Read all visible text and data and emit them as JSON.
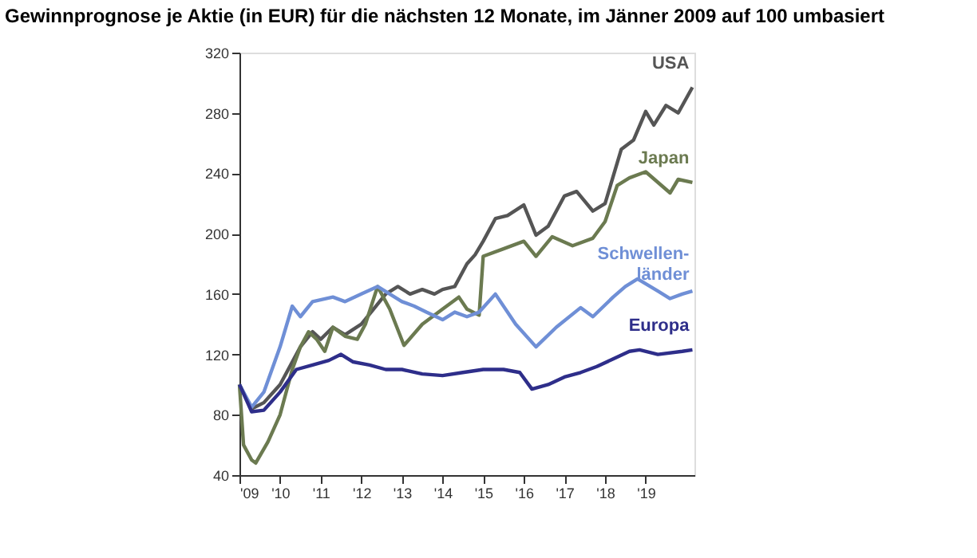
{
  "chart_data": {
    "type": "line",
    "title": "Gewinnprognose je Aktie (in EUR) für die nächsten 12 Monate, im Jänner 2009 auf 100 umbasiert",
    "xlim": [
      2009,
      2020.2
    ],
    "xticks": [
      {
        "value": 2009,
        "label": "'09"
      },
      {
        "value": 2010,
        "label": "'10"
      },
      {
        "value": 2011,
        "label": "'11"
      },
      {
        "value": 2012,
        "label": "'12"
      },
      {
        "value": 2013,
        "label": "'13"
      },
      {
        "value": 2014,
        "label": "'14"
      },
      {
        "value": 2015,
        "label": "'15"
      },
      {
        "value": 2016,
        "label": "'16"
      },
      {
        "value": 2017,
        "label": "'17"
      },
      {
        "value": 2018,
        "label": "'18"
      },
      {
        "value": 2019,
        "label": "'19"
      }
    ],
    "ylim": [
      40,
      320
    ],
    "yticks": [
      40,
      80,
      120,
      160,
      200,
      240,
      280,
      320
    ],
    "grid": false,
    "line_style": "solid",
    "marker": "none",
    "series": [
      {
        "name": "USA",
        "color": "#555555",
        "x": [
          2009.0,
          2009.3,
          2009.6,
          2010.0,
          2010.5,
          2010.8,
          2011.0,
          2011.3,
          2011.6,
          2012.0,
          2012.3,
          2012.6,
          2012.9,
          2013.2,
          2013.5,
          2013.8,
          2014.0,
          2014.3,
          2014.6,
          2014.8,
          2015.0,
          2015.3,
          2015.6,
          2016.0,
          2016.3,
          2016.6,
          2017.0,
          2017.3,
          2017.7,
          2018.0,
          2018.4,
          2018.7,
          2019.0,
          2019.2,
          2019.5,
          2019.8,
          2020.15
        ],
        "values": [
          100,
          84,
          88,
          100,
          125,
          135,
          130,
          138,
          133,
          140,
          150,
          160,
          165,
          160,
          163,
          160,
          163,
          165,
          180,
          186,
          195,
          210,
          212,
          219,
          199,
          205,
          225,
          228,
          215,
          220,
          256,
          262,
          281,
          272,
          285,
          280,
          297
        ]
      },
      {
        "name": "Japan",
        "color": "#6b7a50",
        "x": [
          2009.0,
          2009.1,
          2009.3,
          2009.4,
          2009.7,
          2010.0,
          2010.3,
          2010.5,
          2010.7,
          2010.9,
          2011.1,
          2011.3,
          2011.6,
          2011.9,
          2012.1,
          2012.4,
          2012.7,
          2013.05,
          2013.5,
          2014.0,
          2014.4,
          2014.6,
          2014.9,
          2015.0,
          2015.5,
          2016.0,
          2016.3,
          2016.7,
          2017.2,
          2017.7,
          2018.0,
          2018.3,
          2018.6,
          2019.0,
          2019.3,
          2019.6,
          2019.8,
          2020.15
        ],
        "values": [
          100,
          60,
          50,
          48,
          62,
          80,
          110,
          125,
          135,
          130,
          122,
          138,
          132,
          130,
          140,
          165,
          150,
          126,
          140,
          150,
          158,
          150,
          146,
          185,
          190,
          195,
          185,
          198,
          192,
          197,
          208,
          232,
          237,
          241,
          234,
          227,
          236,
          234
        ]
      },
      {
        "name": "Schwellen-\nländer",
        "color": "#6f8fd6",
        "x": [
          2009.0,
          2009.3,
          2009.6,
          2010.0,
          2010.3,
          2010.5,
          2010.8,
          2011.3,
          2011.6,
          2012.0,
          2012.4,
          2012.7,
          2013.0,
          2013.3,
          2013.6,
          2014.0,
          2014.3,
          2014.6,
          2014.9,
          2015.3,
          2015.8,
          2016.3,
          2016.8,
          2017.4,
          2017.7,
          2018.2,
          2018.5,
          2018.8,
          2019.3,
          2019.6,
          2019.9,
          2020.15
        ],
        "values": [
          100,
          85,
          95,
          125,
          152,
          145,
          155,
          158,
          155,
          160,
          165,
          160,
          155,
          152,
          148,
          143,
          148,
          145,
          148,
          160,
          140,
          125,
          138,
          151,
          145,
          158,
          165,
          170,
          162,
          157,
          160,
          162
        ]
      },
      {
        "name": "Europa",
        "color": "#2e2e8a",
        "x": [
          2009.0,
          2009.3,
          2009.6,
          2010.0,
          2010.4,
          2010.8,
          2011.2,
          2011.5,
          2011.8,
          2012.2,
          2012.6,
          2013.0,
          2013.5,
          2014.0,
          2014.5,
          2015.0,
          2015.5,
          2015.9,
          2016.2,
          2016.6,
          2017.0,
          2017.4,
          2017.8,
          2018.2,
          2018.6,
          2018.85,
          2019.3,
          2019.9,
          2020.15
        ],
        "values": [
          100,
          82,
          83,
          95,
          110,
          113,
          116,
          120,
          115,
          113,
          110,
          110,
          107,
          106,
          108,
          110,
          110,
          108,
          97,
          100,
          105,
          108,
          112,
          117,
          122,
          123,
          120,
          122,
          123
        ]
      }
    ]
  }
}
